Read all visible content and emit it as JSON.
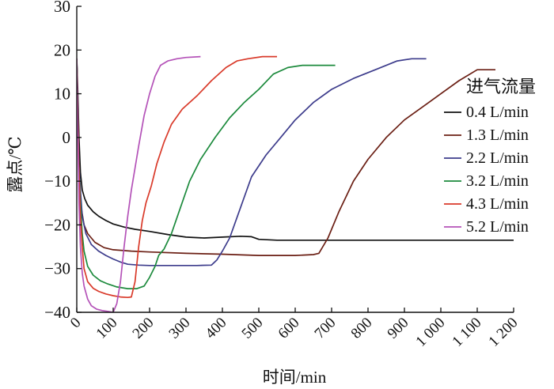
{
  "chart_data": {
    "type": "line",
    "title": "",
    "xlabel": "时间/min",
    "ylabel": "露点/℃",
    "xlim": [
      0,
      1200
    ],
    "ylim": [
      -40,
      30
    ],
    "x_ticks": [
      0,
      100,
      200,
      300,
      400,
      500,
      600,
      700,
      800,
      900,
      1000,
      1100,
      1200
    ],
    "x_tick_labels": [
      "0",
      "100",
      "200",
      "300",
      "400",
      "500",
      "600",
      "700",
      "800",
      "900",
      "1 000",
      "1 100",
      "1 200"
    ],
    "y_ticks": [
      -40,
      -30,
      -20,
      -10,
      0,
      10,
      20,
      30
    ],
    "y_tick_labels": [
      "−40",
      "−30",
      "−20",
      "−10",
      "0",
      "10",
      "20",
      "30"
    ],
    "grid": false,
    "legend_title": "进气流量",
    "legend_position": "right",
    "series": [
      {
        "name": "0.4 L/min",
        "color": "#111111",
        "x": [
          0,
          3,
          6,
          10,
          15,
          22,
          30,
          45,
          60,
          80,
          100,
          130,
          160,
          200,
          250,
          300,
          350,
          400,
          450,
          480,
          500,
          550,
          600,
          700,
          800,
          900,
          1000,
          1100,
          1200
        ],
        "y": [
          18,
          10,
          0,
          -8,
          -12,
          -14,
          -15.5,
          -17,
          -18,
          -19,
          -19.8,
          -20.5,
          -21,
          -21.5,
          -22.2,
          -22.8,
          -23,
          -22.8,
          -22.6,
          -22.7,
          -23.3,
          -23.5,
          -23.5,
          -23.5,
          -23.5,
          -23.5,
          -23.5,
          -23.5,
          -23.5
        ]
      },
      {
        "name": "1.3 L/min",
        "color": "#6b1f14",
        "x": [
          0,
          5,
          10,
          20,
          30,
          50,
          75,
          100,
          150,
          200,
          300,
          400,
          500,
          600,
          650,
          665,
          690,
          720,
          760,
          800,
          850,
          900,
          950,
          1000,
          1050,
          1100,
          1150
        ],
        "y": [
          18,
          -5,
          -15,
          -20,
          -22,
          -24,
          -25.2,
          -25.7,
          -26,
          -26.2,
          -26.5,
          -26.7,
          -27,
          -27,
          -26.8,
          -26.5,
          -23,
          -17,
          -10,
          -5,
          0,
          4,
          7,
          10,
          13,
          15.5,
          15.5
        ]
      },
      {
        "name": "2.2 L/min",
        "color": "#3d3c8c",
        "x": [
          0,
          5,
          10,
          15,
          25,
          40,
          60,
          80,
          100,
          120,
          140,
          170,
          200,
          260,
          330,
          370,
          385,
          400,
          420,
          450,
          480,
          520,
          560,
          600,
          650,
          700,
          760,
          820,
          880,
          920,
          960
        ],
        "y": [
          18,
          -5,
          -12,
          -18,
          -22,
          -24.5,
          -26,
          -27,
          -27.8,
          -28.5,
          -29,
          -29.2,
          -29.3,
          -29.3,
          -29.3,
          -29.2,
          -28,
          -26,
          -23,
          -16,
          -9,
          -4,
          0,
          4,
          8,
          11,
          13.5,
          15.5,
          17.5,
          18,
          18
        ]
      },
      {
        "name": "3.2 L/min",
        "color": "#1c8a3c",
        "x": [
          0,
          5,
          10,
          15,
          20,
          30,
          45,
          65,
          85,
          110,
          140,
          165,
          185,
          200,
          215,
          225,
          240,
          260,
          285,
          310,
          340,
          380,
          420,
          460,
          500,
          540,
          580,
          620,
          660,
          710
        ],
        "y": [
          18,
          -5,
          -15,
          -22,
          -26,
          -29.5,
          -31.5,
          -32.8,
          -33.5,
          -34.2,
          -34.6,
          -34.6,
          -34,
          -32,
          -29.5,
          -27,
          -25.5,
          -22,
          -16,
          -10,
          -5,
          0,
          4.5,
          8,
          11,
          14.5,
          16,
          16.5,
          16.5,
          16.5
        ]
      },
      {
        "name": "4.3 L/min",
        "color": "#d93a2a",
        "x": [
          0,
          5,
          10,
          15,
          20,
          30,
          45,
          60,
          80,
          100,
          120,
          140,
          150,
          160,
          170,
          180,
          190,
          205,
          220,
          240,
          260,
          290,
          330,
          370,
          410,
          440,
          470,
          510,
          550
        ],
        "y": [
          18,
          -5,
          -18,
          -25,
          -30,
          -33,
          -34.5,
          -35.2,
          -35.8,
          -36.2,
          -36.5,
          -36.6,
          -36.5,
          -33,
          -25,
          -19,
          -15,
          -11,
          -6,
          -1,
          3,
          6.5,
          9.5,
          13,
          16,
          17.5,
          18,
          18.5,
          18.5
        ]
      },
      {
        "name": "5.2 L/min",
        "color": "#b452b8",
        "x": [
          0,
          3,
          6,
          10,
          15,
          20,
          30,
          40,
          55,
          70,
          85,
          100,
          110,
          120,
          130,
          140,
          150,
          160,
          170,
          185,
          200,
          215,
          230,
          250,
          275,
          300,
          340
        ],
        "y": [
          18,
          0,
          -15,
          -25,
          -31,
          -34,
          -37,
          -38.5,
          -39.3,
          -39.6,
          -39.8,
          -40,
          -38,
          -33,
          -25,
          -18,
          -12,
          -7,
          -2,
          5,
          10,
          14,
          16.5,
          17.5,
          18,
          18.3,
          18.5
        ]
      }
    ]
  }
}
